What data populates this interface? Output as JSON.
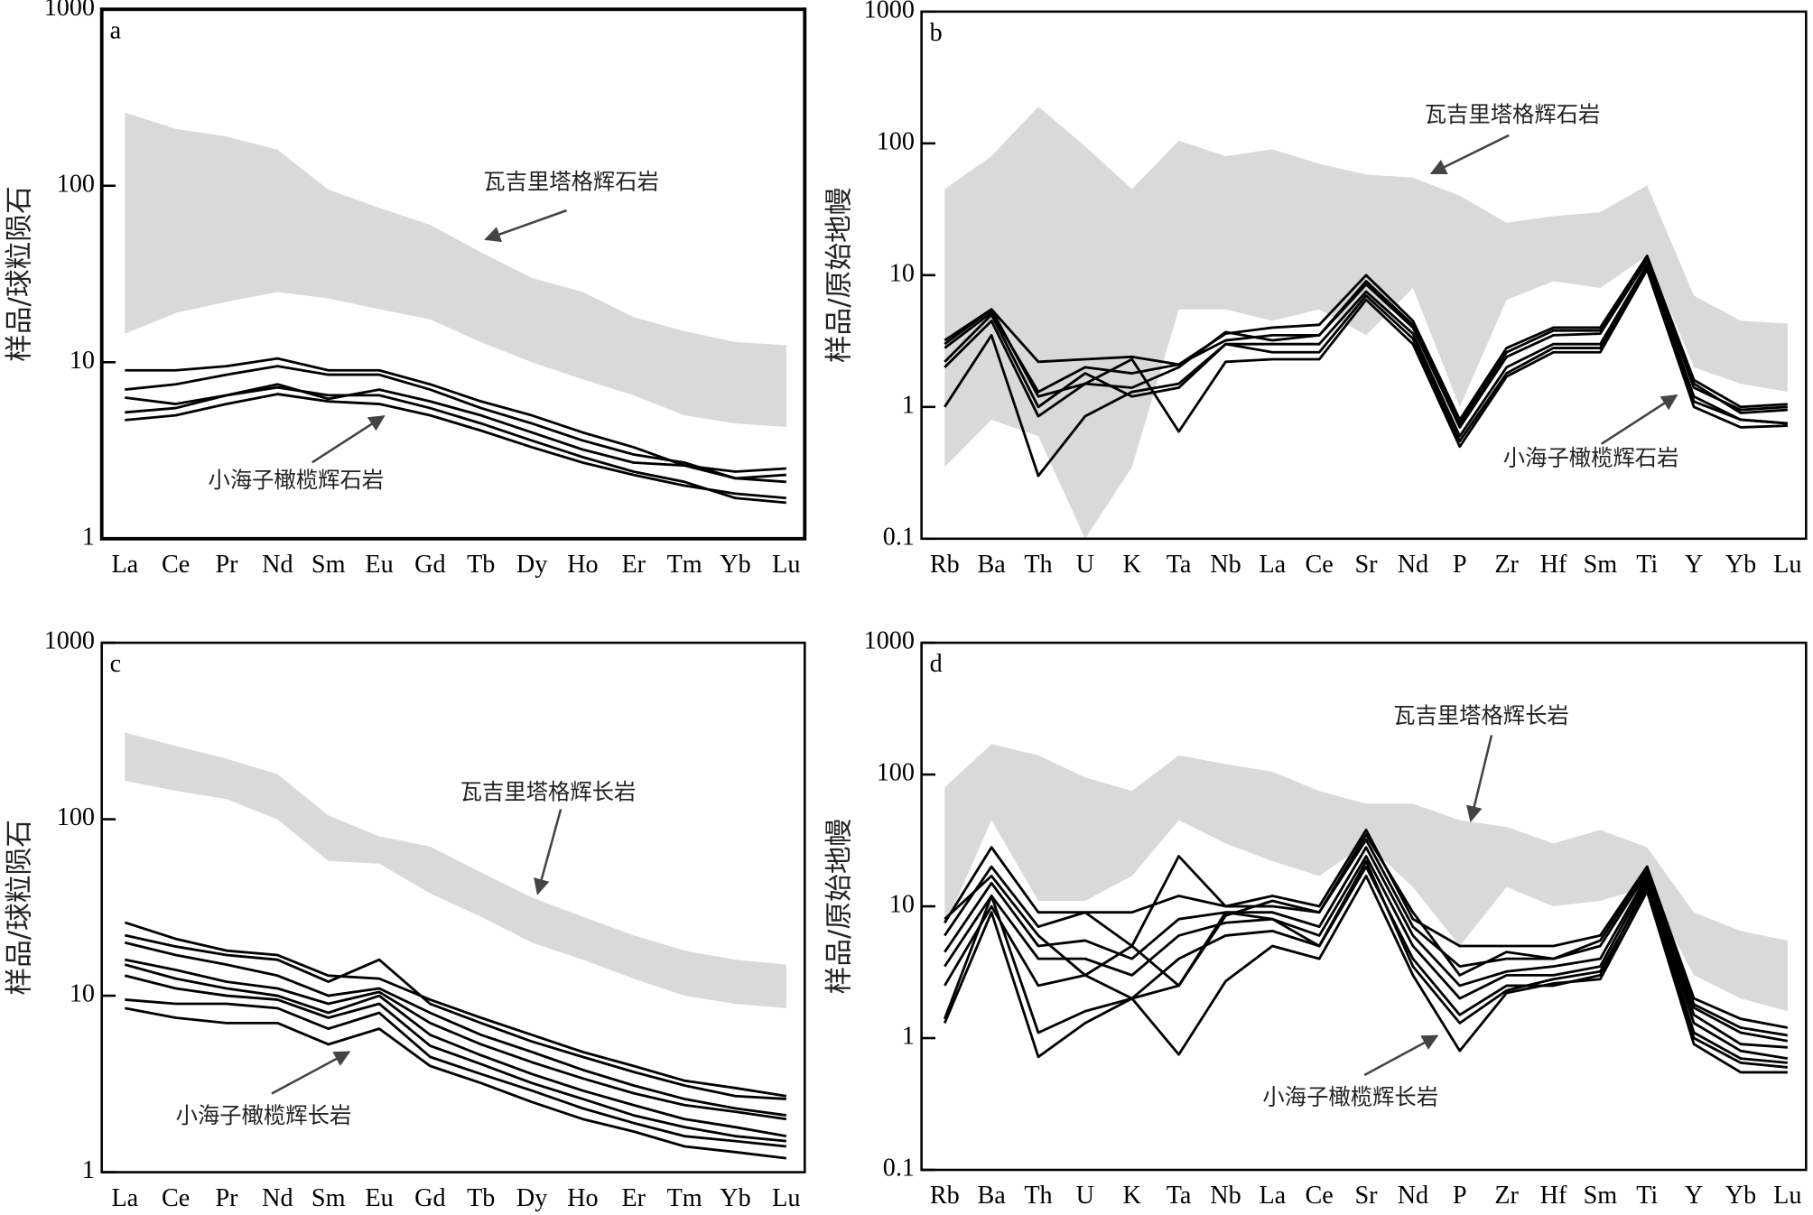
{
  "chart_data": [
    {
      "type": "line",
      "label": "a",
      "ylabel": "样品/球粒陨石",
      "log_scale": true,
      "categories": [
        "La",
        "Ce",
        "Pr",
        "Nd",
        "Sm",
        "Eu",
        "Gd",
        "Tb",
        "Dy",
        "Ho",
        "Er",
        "Tm",
        "Yb",
        "Lu"
      ],
      "ylim": [
        1,
        1000
      ],
      "yticks": [
        1,
        10,
        100,
        1000
      ],
      "band": {
        "color": "#d9d9d9",
        "upper": [
          260,
          210,
          190,
          160,
          95,
          75,
          60,
          42,
          30,
          25,
          18,
          15,
          13,
          12.5
        ],
        "lower": [
          14.5,
          19,
          22,
          25,
          23,
          20,
          17.5,
          13,
          10,
          8,
          6.5,
          5,
          4.5,
          4.3
        ]
      },
      "series": [
        {
          "color": "#000000",
          "values": [
            9,
            9,
            9.5,
            10.5,
            9,
            9,
            7.5,
            6,
            5,
            4,
            3.3,
            2.6,
            2.2,
            2.3
          ]
        },
        {
          "color": "#000000",
          "values": [
            7,
            7.5,
            8.5,
            9.5,
            8.5,
            8.5,
            7,
            5.5,
            4.5,
            3.6,
            3,
            2.7,
            2.2,
            2.1
          ]
        },
        {
          "color": "#000000",
          "values": [
            6.3,
            5.8,
            6.5,
            7.5,
            6.2,
            7,
            6,
            5,
            4,
            3.2,
            2.7,
            2.6,
            2.4,
            2.5
          ]
        },
        {
          "color": "#000000",
          "values": [
            5.2,
            5.5,
            6.5,
            7.2,
            6.5,
            6.5,
            5.5,
            4.5,
            3.6,
            2.9,
            2.4,
            2.1,
            1.7,
            1.6
          ]
        },
        {
          "color": "#000000",
          "values": [
            4.7,
            5,
            5.8,
            6.6,
            6,
            5.8,
            5,
            4.1,
            3.3,
            2.7,
            2.3,
            2,
            1.8,
            1.7
          ]
        }
      ],
      "annotations": [
        "瓦吉里塔格辉石岩",
        "小海子橄榄辉石岩"
      ]
    },
    {
      "type": "line",
      "label": "b",
      "ylabel": "样品/原始地幔",
      "log_scale": true,
      "categories": [
        "Rb",
        "Ba",
        "Th",
        "U",
        "K",
        "Ta",
        "Nb",
        "La",
        "Ce",
        "Sr",
        "Nd",
        "P",
        "Zr",
        "Hf",
        "Sm",
        "Ti",
        "Y",
        "Yb",
        "Lu"
      ],
      "ylim": [
        0.1,
        1000
      ],
      "yticks": [
        0.1,
        1,
        10,
        100,
        1000
      ],
      "band": {
        "color": "#d9d9d9",
        "upper": [
          45,
          80,
          190,
          95,
          45,
          105,
          80,
          90,
          70,
          58,
          55,
          40,
          25,
          28,
          30,
          48,
          7,
          4.5,
          4.3
        ],
        "lower": [
          0.35,
          0.8,
          0.6,
          0.1,
          0.35,
          5.5,
          5.5,
          4.5,
          5.5,
          3.5,
          8,
          1,
          6.5,
          9,
          8,
          14,
          2,
          1.5,
          1.3
        ]
      },
      "series": [
        {
          "color": "#000000",
          "values": [
            3.2,
            5.5,
            2.2,
            2.3,
            2.4,
            2.1,
            3.6,
            4,
            4.2,
            10,
            4.5,
            0.8,
            2.8,
            4,
            4,
            14,
            1.6,
            1,
            1.05
          ]
        },
        {
          "color": "#000000",
          "values": [
            2.8,
            5.2,
            1.3,
            2,
            1.8,
            2.1,
            3.2,
            3.5,
            3.5,
            8.5,
            4,
            0.7,
            2.4,
            3.5,
            3.6,
            13,
            1.4,
            0.95,
            1
          ]
        },
        {
          "color": "#000000",
          "values": [
            2.2,
            5,
            1,
            1.8,
            1.2,
            1.4,
            3,
            3,
            3,
            7.5,
            3.6,
            0.6,
            2,
            3,
            3,
            12,
            1.2,
            0.8,
            0.75
          ]
        },
        {
          "color": "#000000",
          "values": [
            1,
            3.5,
            0.3,
            0.85,
            1.3,
            1.5,
            3,
            2.6,
            2.6,
            7,
            3.3,
            0.55,
            1.8,
            2.8,
            2.8,
            11.5,
            1.1,
            0.8,
            0.75
          ]
        },
        {
          "color": "#000000",
          "values": [
            2,
            4.5,
            0.85,
            1.5,
            2.3,
            0.65,
            2.2,
            2.3,
            2.3,
            6.5,
            3,
            0.5,
            1.7,
            2.6,
            2.6,
            11,
            1,
            0.7,
            0.72
          ]
        },
        {
          "color": "#000000",
          "values": [
            3,
            5.5,
            1.2,
            1.5,
            1.4,
            2,
            3.7,
            3.2,
            3.5,
            9,
            4.2,
            0.75,
            2.6,
            3.8,
            3.8,
            13.5,
            1.5,
            0.9,
            0.95
          ]
        }
      ],
      "annotations": [
        "瓦吉里塔格辉石岩",
        "小海子橄榄辉石岩"
      ]
    },
    {
      "type": "line",
      "label": "c",
      "ylabel": "样品/球粒陨石",
      "log_scale": true,
      "categories": [
        "La",
        "Ce",
        "Pr",
        "Nd",
        "Sm",
        "Eu",
        "Gd",
        "Tb",
        "Dy",
        "Ho",
        "Er",
        "Tm",
        "Yb",
        "Lu"
      ],
      "ylim": [
        1,
        1000
      ],
      "yticks": [
        1,
        10,
        100,
        1000
      ],
      "band": {
        "color": "#d9d9d9",
        "upper": [
          310,
          260,
          220,
          180,
          105,
          80,
          70,
          50,
          36,
          28,
          22,
          18,
          16,
          15
        ],
        "lower": [
          165,
          145,
          130,
          100,
          58,
          56,
          38,
          28,
          20,
          16,
          12.5,
          10,
          9,
          8.5
        ]
      },
      "series": [
        {
          "color": "#000000",
          "values": [
            26,
            21,
            18,
            17,
            13,
            12.5,
            9.5,
            7.5,
            6,
            4.8,
            4,
            3.3,
            3,
            2.7
          ]
        },
        {
          "color": "#000000",
          "values": [
            22,
            19,
            17,
            16,
            12,
            16,
            9,
            7,
            5.5,
            4.5,
            3.7,
            3.1,
            2.7,
            2.6
          ]
        },
        {
          "color": "#000000",
          "values": [
            20,
            17,
            15,
            13,
            10,
            11,
            8,
            6,
            4.8,
            3.8,
            3.1,
            2.6,
            2.3,
            2.1
          ]
        },
        {
          "color": "#000000",
          "values": [
            16,
            14,
            12,
            11,
            9,
            10.5,
            7,
            5.3,
            4.2,
            3.4,
            2.8,
            2.4,
            2.2,
            2
          ]
        },
        {
          "color": "#000000",
          "values": [
            15,
            12.5,
            11,
            10,
            8,
            10,
            6,
            4.6,
            3.6,
            2.9,
            2.4,
            2,
            1.8,
            1.6
          ]
        },
        {
          "color": "#000000",
          "values": [
            13,
            11,
            10,
            9.5,
            7.5,
            9,
            5.2,
            4.1,
            3.2,
            2.6,
            2.1,
            1.8,
            1.6,
            1.5
          ]
        },
        {
          "color": "#000000",
          "values": [
            9.5,
            9,
            9,
            8.5,
            6.5,
            8,
            4.5,
            3.6,
            2.9,
            2.3,
            1.9,
            1.6,
            1.5,
            1.4
          ]
        },
        {
          "color": "#000000",
          "values": [
            8.5,
            7.5,
            7,
            7,
            5.3,
            6.5,
            4,
            3.2,
            2.5,
            2,
            1.7,
            1.4,
            1.3,
            1.2
          ]
        }
      ],
      "annotations": [
        "瓦吉里塔格辉长岩",
        "小海子橄榄辉长岩"
      ]
    },
    {
      "type": "line",
      "label": "d",
      "ylabel": "样品/原始地幔",
      "log_scale": true,
      "categories": [
        "Rb",
        "Ba",
        "Th",
        "U",
        "K",
        "Ta",
        "Nb",
        "La",
        "Ce",
        "Sr",
        "Nd",
        "P",
        "Zr",
        "Hf",
        "Sm",
        "Ti",
        "Y",
        "Yb",
        "Lu"
      ],
      "ylim": [
        0.1,
        1000
      ],
      "yticks": [
        0.1,
        1,
        10,
        100,
        1000
      ],
      "band": {
        "color": "#d9d9d9",
        "upper": [
          80,
          170,
          140,
          95,
          75,
          140,
          120,
          105,
          75,
          60,
          60,
          45,
          40,
          30,
          38,
          28,
          9,
          6.5,
          5.5
        ],
        "lower": [
          7,
          45,
          11,
          11,
          17,
          45,
          30,
          22,
          17,
          30,
          14,
          5,
          14,
          10,
          11,
          14,
          3,
          2,
          1.6
        ]
      },
      "series": [
        {
          "color": "#000000",
          "values": [
            7.5,
            28,
            9,
            9,
            5,
            24,
            10,
            12,
            10,
            38,
            8,
            5,
            5,
            5,
            6,
            20,
            2,
            1.4,
            1.2
          ]
        },
        {
          "color": "#000000",
          "values": [
            6,
            20,
            7,
            9,
            9,
            12,
            10,
            10,
            9,
            32,
            7,
            3.5,
            4,
            4,
            5,
            18,
            1.7,
            1.1,
            0.95
          ]
        },
        {
          "color": "#000000",
          "values": [
            4.5,
            15,
            5,
            5.5,
            4,
            8,
            9,
            9,
            7,
            28,
            6,
            2.5,
            3.2,
            3.5,
            4,
            17,
            1.5,
            0.9,
            0.85
          ]
        },
        {
          "color": "#000000",
          "values": [
            3.5,
            12,
            4,
            4,
            3,
            6,
            7.5,
            8,
            6,
            24,
            5,
            2,
            3,
            3,
            3.5,
            16,
            1.3,
            0.8,
            0.7
          ]
        },
        {
          "color": "#000000",
          "values": [
            2.5,
            10,
            2.5,
            3,
            2,
            4,
            6,
            6.5,
            5,
            20,
            4,
            1.5,
            2.5,
            2.5,
            3,
            15,
            1.1,
            0.7,
            0.65
          ]
        },
        {
          "color": "#000000",
          "values": [
            1.4,
            12,
            1.1,
            1.6,
            2,
            2.5,
            9,
            8,
            5,
            22,
            3.5,
            1.3,
            2.3,
            2.8,
            3.2,
            14,
            1,
            0.65,
            0.6
          ]
        },
        {
          "color": "#000000",
          "values": [
            1.3,
            9,
            0.72,
            1.3,
            2,
            0.75,
            2.7,
            5,
            4,
            17,
            3,
            0.8,
            2.2,
            2.6,
            2.8,
            13,
            0.9,
            0.55,
            0.55
          ]
        },
        {
          "color": "#000000",
          "values": [
            8,
            17,
            6,
            3,
            5,
            2.5,
            8.5,
            11,
            9,
            35,
            9,
            3,
            4.5,
            4,
            5.5,
            19,
            1.8,
            1.2,
            1.05
          ]
        }
      ],
      "annotations": [
        "瓦吉里塔格辉长岩",
        "小海子橄榄辉长岩"
      ]
    }
  ]
}
